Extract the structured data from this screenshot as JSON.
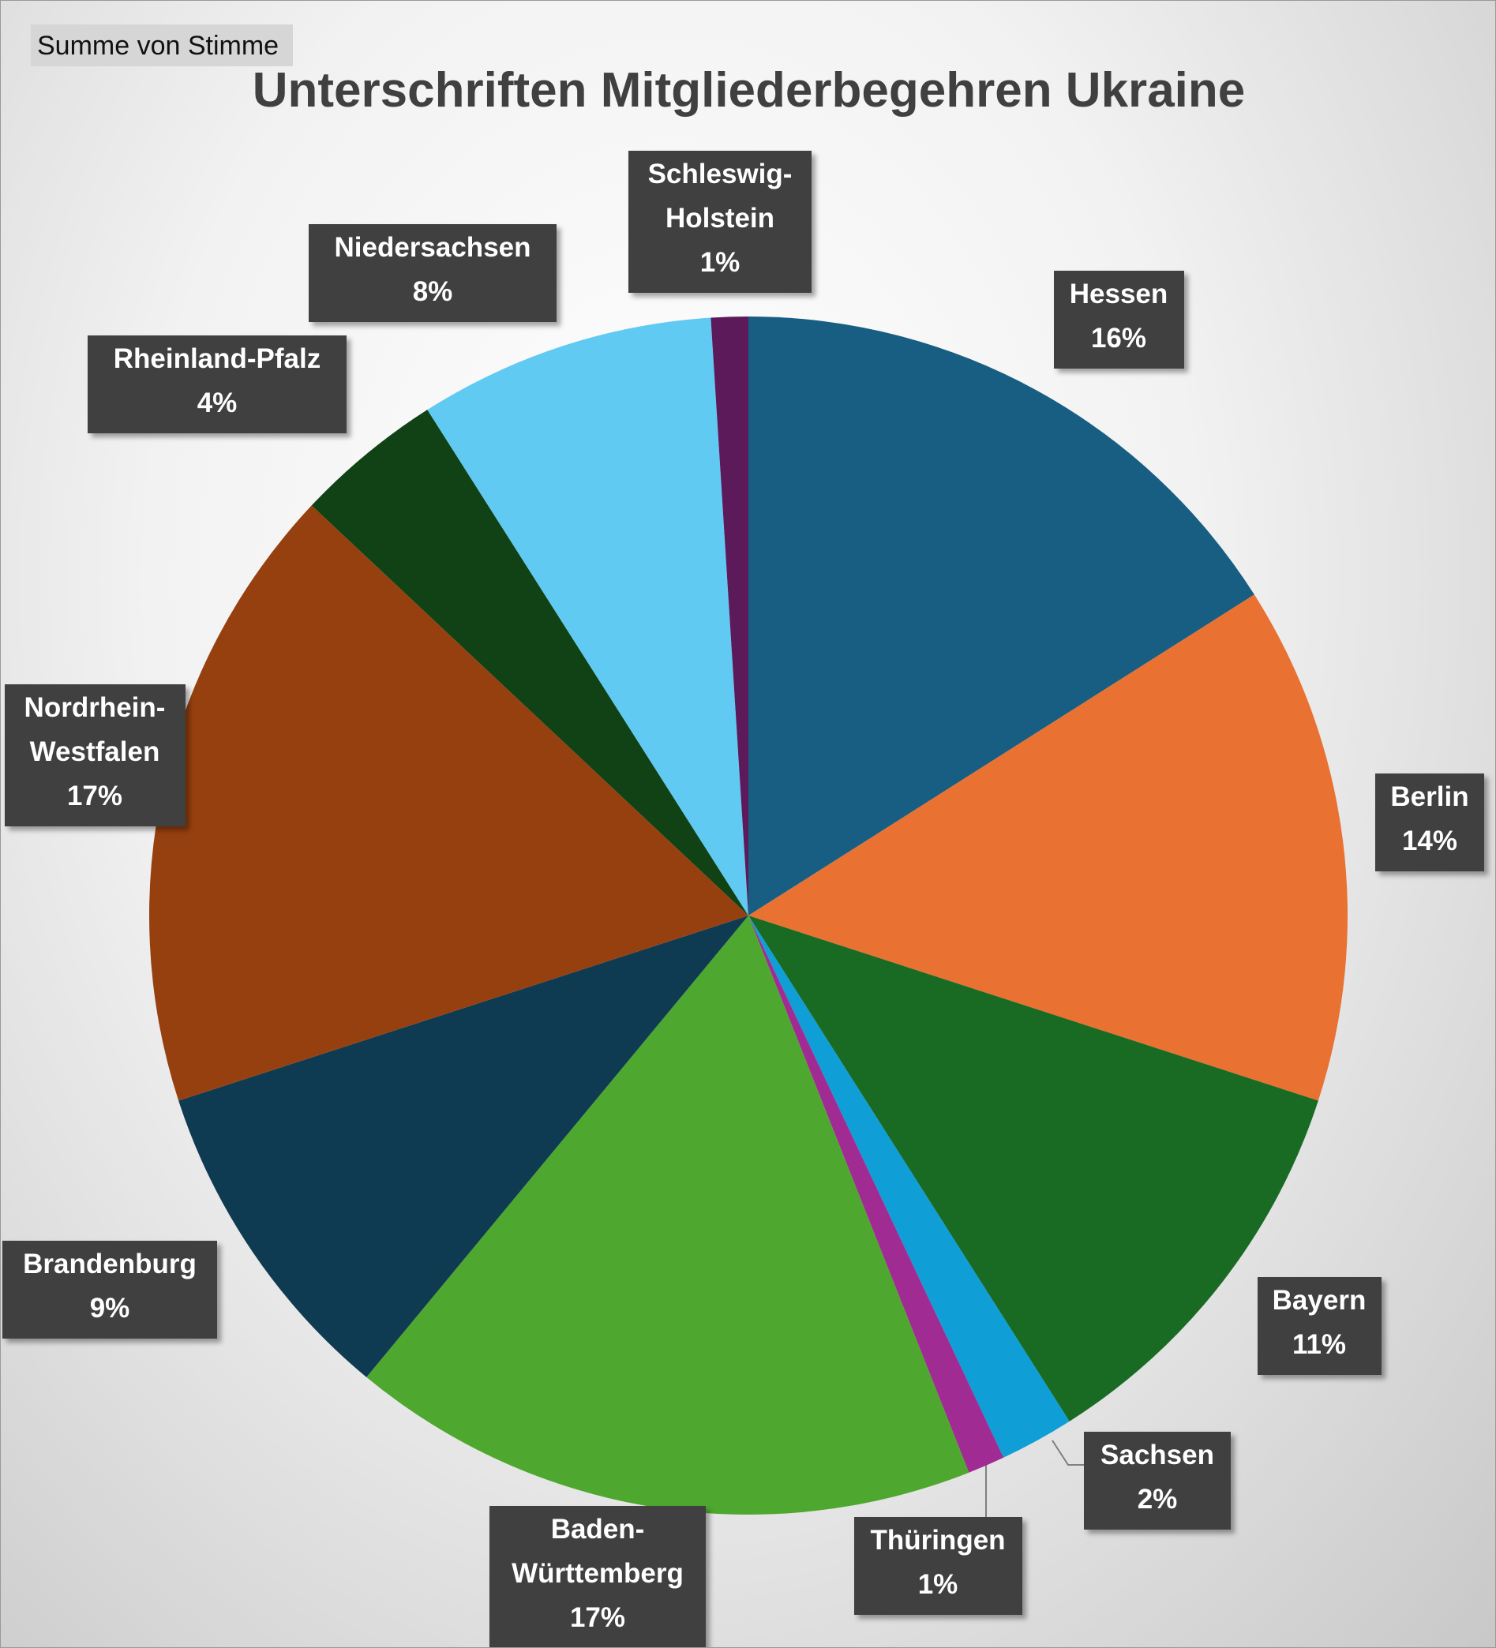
{
  "pivot_field": "Summe von Stimme",
  "chart_data": {
    "type": "pie",
    "title": "Unterschriften Mitgliederbegehren Ukraine",
    "categories": [
      "Hessen",
      "Berlin",
      "Bayern",
      "Sachsen",
      "Thüringen",
      "Baden-Württemberg",
      "Brandenburg",
      "Nordrhein-Westfalen",
      "Rheinland-Pfalz",
      "Niedersachsen",
      "Schleswig-Holstein"
    ],
    "values": [
      16,
      14,
      11,
      2,
      1,
      17,
      9,
      17,
      4,
      8,
      1
    ],
    "value_labels": [
      "16%",
      "14%",
      "11%",
      "2%",
      "1%",
      "17%",
      "9%",
      "17%",
      "4%",
      "8%",
      "1%"
    ],
    "colors": [
      "#175e82",
      "#e97132",
      "#196b24",
      "#0f9ed5",
      "#a02b93",
      "#4ea72e",
      "#0e3a52",
      "#97400f",
      "#104216",
      "#60caf3",
      "#5d1a5a"
    ]
  }
}
